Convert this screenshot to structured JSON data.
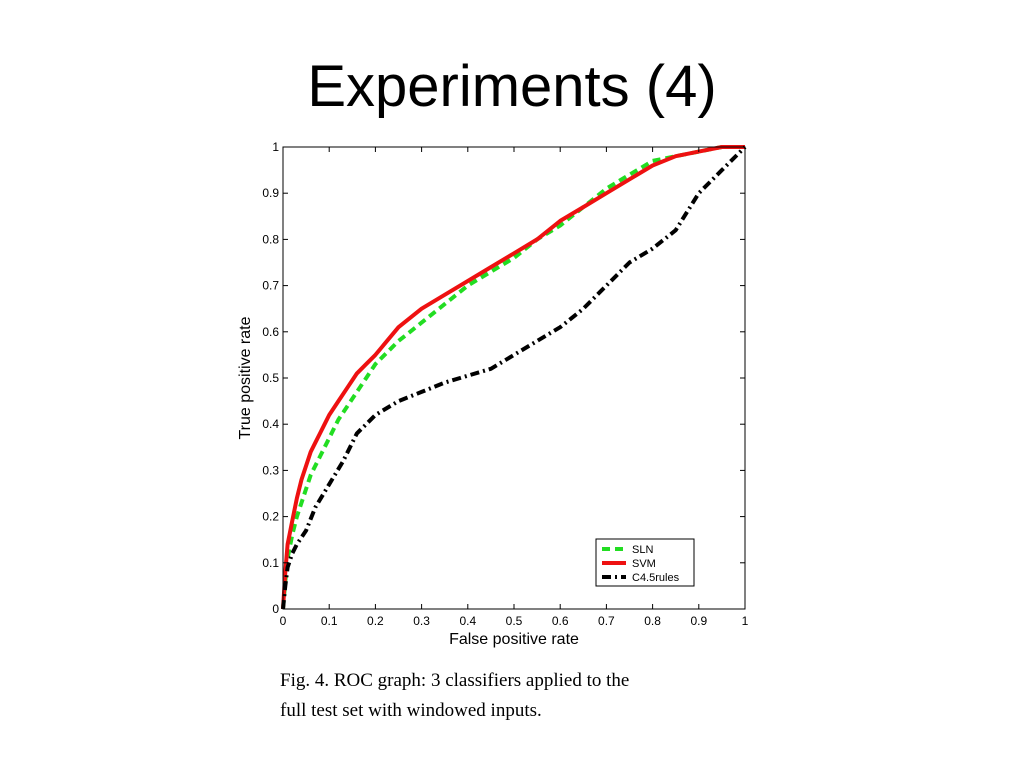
{
  "slide": {
    "title": "Experiments (4)"
  },
  "caption": {
    "line1": "Fig. 4. ROC graph: 3 classifiers applied to the",
    "line2": "full test set with windowed inputs."
  },
  "chart_data": {
    "type": "line",
    "title": "",
    "xlabel": "False positive rate",
    "ylabel": "True positive rate",
    "xlim": [
      0,
      1
    ],
    "ylim": [
      0,
      1
    ],
    "xticks": [
      "0",
      "0.1",
      "0.2",
      "0.3",
      "0.4",
      "0.5",
      "0.6",
      "0.7",
      "0.8",
      "0.9",
      "1"
    ],
    "yticks": [
      "0",
      "0.1",
      "0.2",
      "0.3",
      "0.4",
      "0.5",
      "0.6",
      "0.7",
      "0.8",
      "0.9",
      "1"
    ],
    "grid": false,
    "legend_position": "bottom-right",
    "series": [
      {
        "name": "SLN",
        "color": "#22dd22",
        "style": "dashed",
        "x": [
          0,
          0.005,
          0.01,
          0.02,
          0.03,
          0.04,
          0.05,
          0.06,
          0.07,
          0.08,
          0.09,
          0.1,
          0.12,
          0.14,
          0.16,
          0.18,
          0.2,
          0.25,
          0.3,
          0.35,
          0.4,
          0.45,
          0.5,
          0.55,
          0.6,
          0.65,
          0.7,
          0.75,
          0.8,
          0.85,
          0.9,
          0.95,
          1.0
        ],
        "y": [
          0,
          0.06,
          0.11,
          0.16,
          0.2,
          0.23,
          0.26,
          0.29,
          0.31,
          0.33,
          0.35,
          0.37,
          0.41,
          0.44,
          0.47,
          0.5,
          0.53,
          0.58,
          0.62,
          0.66,
          0.7,
          0.73,
          0.76,
          0.8,
          0.83,
          0.87,
          0.91,
          0.94,
          0.97,
          0.98,
          0.99,
          1.0,
          1.0
        ]
      },
      {
        "name": "SVM",
        "color": "#ee1111",
        "style": "solid",
        "x": [
          0,
          0.005,
          0.01,
          0.02,
          0.03,
          0.04,
          0.05,
          0.06,
          0.07,
          0.08,
          0.09,
          0.1,
          0.12,
          0.14,
          0.16,
          0.18,
          0.2,
          0.25,
          0.3,
          0.35,
          0.4,
          0.45,
          0.5,
          0.55,
          0.6,
          0.65,
          0.7,
          0.75,
          0.8,
          0.85,
          0.9,
          0.95,
          1.0
        ],
        "y": [
          0,
          0.08,
          0.14,
          0.19,
          0.24,
          0.28,
          0.31,
          0.34,
          0.36,
          0.38,
          0.4,
          0.42,
          0.45,
          0.48,
          0.51,
          0.53,
          0.55,
          0.61,
          0.65,
          0.68,
          0.71,
          0.74,
          0.77,
          0.8,
          0.84,
          0.87,
          0.9,
          0.93,
          0.96,
          0.98,
          0.99,
          1.0,
          1.0
        ]
      },
      {
        "name": "C4.5rules",
        "color": "#000000",
        "style": "dashdot",
        "x": [
          0,
          0.005,
          0.01,
          0.02,
          0.03,
          0.05,
          0.07,
          0.1,
          0.13,
          0.16,
          0.18,
          0.2,
          0.25,
          0.3,
          0.35,
          0.4,
          0.45,
          0.5,
          0.55,
          0.6,
          0.65,
          0.7,
          0.75,
          0.8,
          0.85,
          0.9,
          0.95,
          1.0
        ],
        "y": [
          0,
          0.05,
          0.09,
          0.12,
          0.14,
          0.17,
          0.22,
          0.27,
          0.32,
          0.38,
          0.4,
          0.42,
          0.45,
          0.47,
          0.49,
          0.505,
          0.52,
          0.55,
          0.58,
          0.61,
          0.65,
          0.7,
          0.75,
          0.78,
          0.82,
          0.9,
          0.95,
          1.0
        ]
      }
    ]
  }
}
